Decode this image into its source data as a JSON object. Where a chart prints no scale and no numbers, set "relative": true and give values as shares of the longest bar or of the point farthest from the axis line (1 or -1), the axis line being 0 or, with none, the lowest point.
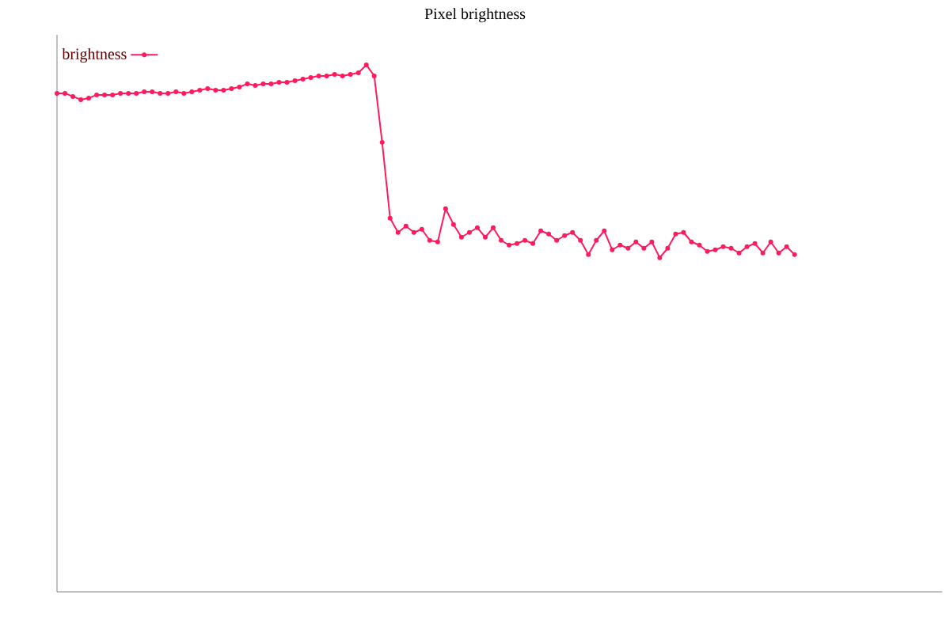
{
  "chart_data": {
    "type": "line",
    "title": "Pixel brightness",
    "relative": true,
    "legend": "top left",
    "marker": "circle",
    "line_style": "solid",
    "categories": [
      null,
      null,
      null,
      null,
      null,
      null,
      null,
      null,
      null,
      null,
      null,
      null,
      null,
      null,
      null,
      null,
      null,
      null,
      null,
      null,
      null,
      null,
      null,
      null,
      null,
      null,
      null,
      null,
      null,
      null,
      null,
      null,
      null,
      null,
      null,
      null,
      null,
      null,
      null,
      null,
      null,
      null,
      null,
      null,
      null,
      null,
      null,
      null,
      null,
      null,
      null,
      null,
      null,
      null,
      null,
      null,
      null,
      null,
      null,
      null,
      null,
      null,
      null,
      null,
      null,
      null,
      null,
      null,
      null,
      null,
      null,
      null,
      null,
      null,
      null,
      null,
      null,
      null,
      null,
      null,
      null,
      null,
      null,
      null,
      null,
      null,
      null,
      null,
      null,
      null,
      null,
      null,
      null,
      null
    ],
    "series": [
      {
        "name": "brightness",
        "color": "#ff1a5e",
        "values": [
          0.946,
          0.946,
          0.94,
          0.934,
          0.937,
          0.943,
          0.943,
          0.943,
          0.946,
          0.946,
          0.946,
          0.949,
          0.949,
          0.946,
          0.946,
          0.949,
          0.946,
          0.949,
          0.952,
          0.955,
          0.952,
          0.952,
          0.955,
          0.958,
          0.964,
          0.961,
          0.964,
          0.964,
          0.967,
          0.967,
          0.97,
          0.973,
          0.976,
          0.979,
          0.979,
          0.982,
          0.979,
          0.982,
          0.985,
          1.0,
          0.979,
          0.853,
          0.709,
          0.682,
          0.694,
          0.682,
          0.688,
          0.667,
          0.664,
          0.727,
          0.697,
          0.673,
          0.682,
          0.691,
          0.673,
          0.691,
          0.667,
          0.658,
          0.661,
          0.667,
          0.661,
          0.685,
          0.679,
          0.667,
          0.676,
          0.682,
          0.667,
          0.64,
          0.667,
          0.685,
          0.649,
          0.658,
          0.652,
          0.664,
          0.652,
          0.664,
          0.634,
          0.652,
          0.679,
          0.682,
          0.664,
          0.658,
          0.646,
          0.649,
          0.655,
          0.652,
          0.643,
          0.655,
          0.661,
          0.643,
          0.664,
          0.643,
          0.655,
          0.64
        ]
      }
    ]
  }
}
